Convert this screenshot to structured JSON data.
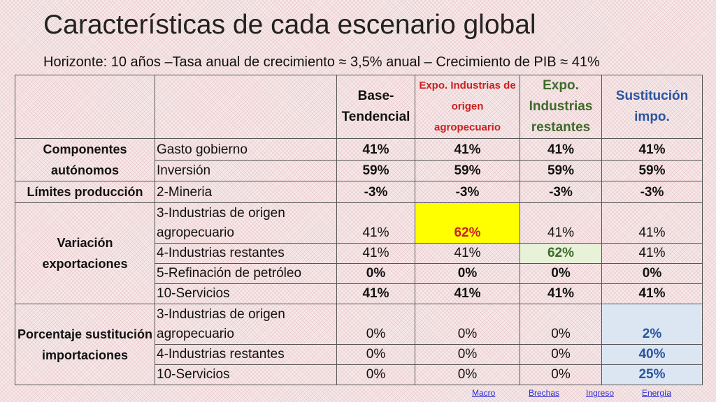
{
  "title": "Características de cada escenario global",
  "subtitle": "Horizonte: 10 años –Tasa anual de crecimiento ≈ 3,5% anual – Crecimiento de PIB ≈ 41%",
  "headers": {
    "base": "Base-Tendencial",
    "agro": "Expo. Industrias de origen agropecuario",
    "restantes": "Expo. Industrias restantes",
    "sustitucion": "Sustitución impo."
  },
  "groups": {
    "componentes": "Componentes autónomos",
    "limites": "Límites producción",
    "variacion": "Variación exportaciones",
    "porcentaje": "Porcentaje sustitución importaciones"
  },
  "rows": [
    {
      "label": "Gasto gobierno",
      "values": [
        "41%",
        "41%",
        "41%",
        "41%"
      ]
    },
    {
      "label": "Inversión",
      "values": [
        "59%",
        "59%",
        "59%",
        "59%"
      ]
    },
    {
      "label": "2-Mineria",
      "values": [
        "-3%",
        "-3%",
        "-3%",
        "-3%"
      ]
    },
    {
      "label": "3-Industrias de origen agropecuario",
      "values": [
        "41%",
        "62%",
        "41%",
        "41%"
      ]
    },
    {
      "label": "4-Industrias restantes",
      "values": [
        "41%",
        "41%",
        "62%",
        "41%"
      ]
    },
    {
      "label": "5-Refinación de petróleo",
      "values": [
        "0%",
        "0%",
        "0%",
        "0%"
      ]
    },
    {
      "label": "10-Servicios",
      "values": [
        "41%",
        "41%",
        "41%",
        "41%"
      ]
    },
    {
      "label": "3-Industrias de origen agropecuario",
      "values": [
        "0%",
        "0%",
        "0%",
        "2%"
      ]
    },
    {
      "label": "4-Industrias restantes",
      "values": [
        "0%",
        "0%",
        "0%",
        "40%"
      ]
    },
    {
      "label": "10-Servicios",
      "values": [
        "0%",
        "0%",
        "0%",
        "25%"
      ]
    }
  ],
  "nav_links": [
    "Macro",
    "Brechas",
    "Ingreso",
    "Energía"
  ],
  "colors": {
    "highlight_yellow": "#ffff00",
    "highlight_green": "#e7f2d8",
    "highlight_blue": "#dce6f2",
    "header_red": "#cc1f1f",
    "header_green": "#3e6b2b",
    "header_blue": "#2a55a0"
  }
}
